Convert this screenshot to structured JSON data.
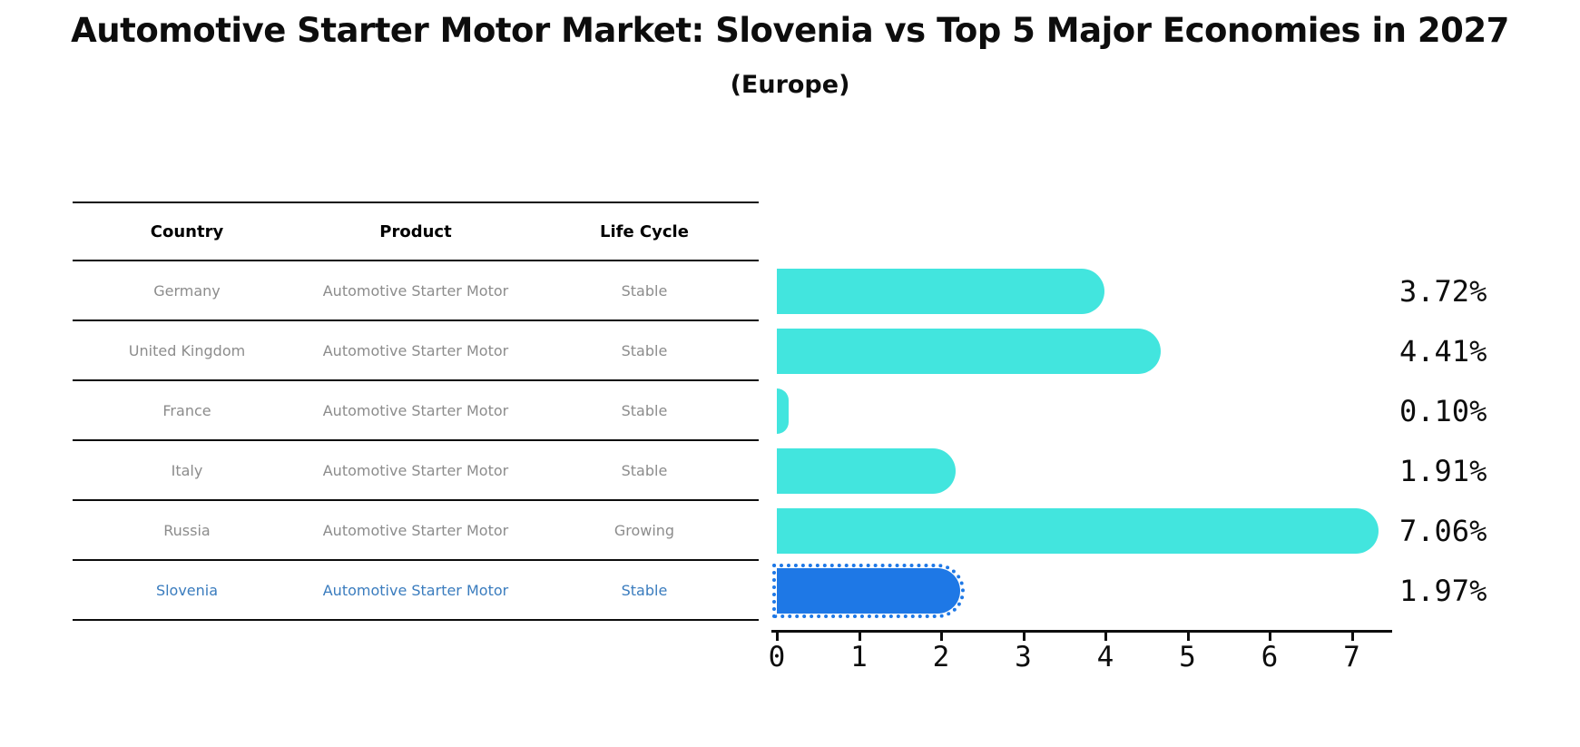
{
  "header": {
    "title": "Automotive Starter Motor Market: Slovenia vs Top 5 Major Economies in 2027",
    "subtitle": "(Europe)"
  },
  "table": {
    "columns": [
      "Country",
      "Product",
      "Life Cycle"
    ],
    "rows": [
      {
        "country": "Germany",
        "product": "Automotive Starter Motor",
        "life_cycle": "Stable",
        "highlighted": false
      },
      {
        "country": "United Kingdom",
        "product": "Automotive Starter Motor",
        "life_cycle": "Stable",
        "highlighted": false
      },
      {
        "country": "France",
        "product": "Automotive Starter Motor",
        "life_cycle": "Stable",
        "highlighted": false
      },
      {
        "country": "Italy",
        "product": "Automotive Starter Motor",
        "life_cycle": "Stable",
        "highlighted": false
      },
      {
        "country": "Russia",
        "product": "Automotive Starter Motor",
        "life_cycle": "Growing",
        "highlighted": false
      },
      {
        "country": "Slovenia",
        "product": "Automotive Starter Motor",
        "life_cycle": "Stable",
        "highlighted": true
      }
    ]
  },
  "chart_data": {
    "type": "bar",
    "orientation": "horizontal",
    "title": "Automotive Starter Motor Market: Slovenia vs Top 5 Major Economies in 2027",
    "subtitle": "(Europe)",
    "categories": [
      "Germany",
      "United Kingdom",
      "France",
      "Italy",
      "Russia",
      "Slovenia"
    ],
    "values": [
      3.72,
      4.41,
      0.1,
      1.91,
      7.06,
      1.97
    ],
    "value_labels": [
      "3.72%",
      "4.41%",
      "0.10%",
      "1.91%",
      "7.06%",
      "1.97%"
    ],
    "x_ticks": [
      "0",
      "1",
      "2",
      "3",
      "4",
      "5",
      "6",
      "7"
    ],
    "xlim": [
      0,
      7.45
    ],
    "grid": false,
    "legend": "none",
    "bar_color": "#42E5DE",
    "highlight_index": 5,
    "highlight_bar_color": "#1E78E6",
    "highlight_text_color": "#3A7CBE",
    "row_text_color": "#8C8C8C"
  }
}
